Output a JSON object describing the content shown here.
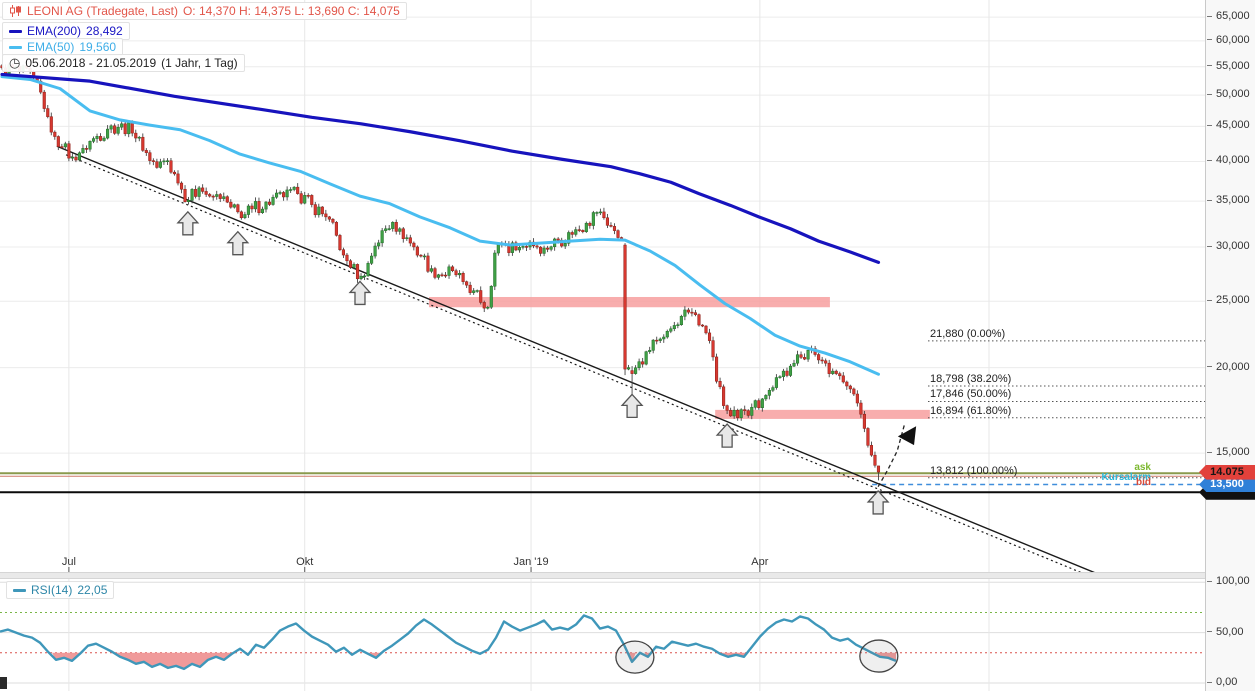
{
  "legend": {
    "instrument_name": "LEONI AG (Tradegate, Last)",
    "ohlc_text": "O: 14,370  H: 14,375  L: 13,690  C: 14,075",
    "ema200_label": "EMA(200)",
    "ema200_value": "28,492",
    "ema50_label": "EMA(50)",
    "ema50_value": "19,560",
    "range_text": "05.06.2018 - 21.05.2019",
    "range_detail": "(1 Jahr, 1 Tag)",
    "clock_glyph": "◷"
  },
  "rsi_legend": {
    "label": "RSI(14)",
    "value": "22,05"
  },
  "side_labels": {
    "ask": "ask",
    "alarm": "Kursalarm",
    "bid": "bid"
  },
  "price_axis_ticks": [
    {
      "label": "65,000",
      "price": 65.0
    },
    {
      "label": "60,000",
      "price": 60.0
    },
    {
      "label": "55,000",
      "price": 55.0
    },
    {
      "label": "50,000",
      "price": 50.0
    },
    {
      "label": "45,000",
      "price": 45.0
    },
    {
      "label": "40,000",
      "price": 40.0
    },
    {
      "label": "35,000",
      "price": 35.0
    },
    {
      "label": "30,000",
      "price": 30.0
    },
    {
      "label": "25,000",
      "price": 25.0
    },
    {
      "label": "20,000",
      "price": 20.0
    },
    {
      "label": "15,000",
      "price": 15.0
    }
  ],
  "rsi_axis_ticks": [
    {
      "label": "100,00",
      "value": 100
    },
    {
      "label": "50,00",
      "value": 50
    },
    {
      "label": "0,00",
      "value": 0
    }
  ],
  "price_tags": [
    {
      "text": "",
      "bg": "#111111",
      "fg": "#111111",
      "price": 13.15,
      "z": 24
    },
    {
      "text": "13,500",
      "bg": "#2f80d8",
      "fg": "#ffffff",
      "price": 13.5,
      "z": 26
    },
    {
      "text": "14.075",
      "bg": "#e2413b",
      "fg": "#151515",
      "price": 14.075,
      "z": 27
    }
  ],
  "time_axis": {
    "labels": [
      {
        "text": "Jul",
        "day": 19
      },
      {
        "text": "Okt",
        "day": 86
      },
      {
        "text": "Jan '19",
        "day": 150.3
      },
      {
        "text": "Apr",
        "day": 215.3
      }
    ],
    "extra_grid_days": [
      280.4
    ]
  },
  "chart_data": [
    {
      "type": "candlestick",
      "title": "LEONI AG (Tradegate, Last)",
      "timeframe": "1 Tag",
      "date_range": "05.06.2018 - 21.05.2019",
      "y_axis": {
        "scale": "log",
        "unit": "EUR",
        "ticks": [
          65,
          60,
          55,
          50,
          45,
          40,
          35,
          30,
          25,
          20,
          15
        ]
      },
      "last_ohlc": {
        "open": 14.37,
        "high": 14.375,
        "low": 13.69,
        "close": 14.075
      },
      "close_anchors": [
        [
          0,
          54.8
        ],
        [
          5,
          54.2
        ],
        [
          9,
          53.0
        ],
        [
          11,
          50.5
        ],
        [
          13,
          46.5
        ],
        [
          15,
          43.5
        ],
        [
          17,
          42.0
        ],
        [
          20,
          40.6
        ],
        [
          23,
          41.8
        ],
        [
          26,
          43.2
        ],
        [
          30,
          44.6
        ],
        [
          34,
          45.4
        ],
        [
          37,
          44.0
        ],
        [
          39,
          43.4
        ],
        [
          41,
          41.2
        ],
        [
          44,
          39.2
        ],
        [
          47,
          40.1
        ],
        [
          50,
          37.2
        ],
        [
          53,
          35.1
        ],
        [
          56,
          36.6
        ],
        [
          59,
          35.6
        ],
        [
          62,
          35.3
        ],
        [
          65,
          34.3
        ],
        [
          68,
          33.1
        ],
        [
          71,
          34.1
        ],
        [
          75,
          34.9
        ],
        [
          80,
          35.5
        ],
        [
          84,
          35.9
        ],
        [
          88,
          34.6
        ],
        [
          92,
          33.2
        ],
        [
          95,
          31.2
        ],
        [
          97,
          29.2
        ],
        [
          99,
          28.0
        ],
        [
          102,
          27.2
        ],
        [
          104,
          28.4
        ],
        [
          106,
          30.1
        ],
        [
          109,
          31.9
        ],
        [
          111,
          32.6
        ],
        [
          113,
          31.9
        ],
        [
          116,
          30.4
        ],
        [
          119,
          29.1
        ],
        [
          122,
          27.9
        ],
        [
          125,
          27.3
        ],
        [
          128,
          27.7
        ],
        [
          131,
          26.7
        ],
        [
          134,
          25.9
        ],
        [
          136,
          24.9
        ],
        [
          138,
          24.5
        ],
        [
          140,
          29.4
        ],
        [
          142,
          30.3
        ],
        [
          146,
          29.7
        ],
        [
          150,
          30.5
        ],
        [
          154,
          29.9
        ],
        [
          158,
          30.7
        ],
        [
          162,
          31.3
        ],
        [
          166,
          32.5
        ],
        [
          169,
          33.7
        ],
        [
          171,
          33.1
        ],
        [
          174,
          31.7
        ],
        [
          176,
          30.7
        ],
        [
          177,
          19.9
        ],
        [
          178,
          20.0
        ],
        [
          179,
          19.6
        ],
        [
          181,
          20.4
        ],
        [
          183,
          21.1
        ],
        [
          186,
          21.9
        ],
        [
          189,
          22.6
        ],
        [
          192,
          23.1
        ],
        [
          195,
          24.1
        ],
        [
          197,
          23.9
        ],
        [
          199,
          23.0
        ],
        [
          201,
          21.9
        ],
        [
          203,
          19.1
        ],
        [
          205,
          17.6
        ],
        [
          207,
          17.0
        ],
        [
          209,
          16.9
        ],
        [
          211,
          17.3
        ],
        [
          213,
          17.5
        ],
        [
          216,
          18.0
        ],
        [
          219,
          18.7
        ],
        [
          221,
          19.4
        ],
        [
          224,
          20.1
        ],
        [
          227,
          20.7
        ],
        [
          229,
          21.2
        ],
        [
          231,
          20.9
        ],
        [
          234,
          20.3
        ],
        [
          237,
          19.6
        ],
        [
          240,
          18.8
        ],
        [
          242,
          18.3
        ],
        [
          244,
          17.1
        ],
        [
          245,
          16.3
        ],
        [
          246,
          15.4
        ],
        [
          247,
          14.9
        ],
        [
          248,
          14.4
        ],
        [
          249,
          14.075
        ]
      ],
      "special_candles": {
        "177": {
          "o": 30.2,
          "h": 30.4,
          "l": 19.5,
          "c": 19.9
        },
        "179": {
          "o": 19.8,
          "h": 20.1,
          "l": 17.95,
          "c": 19.6
        },
        "249": {
          "o": 14.37,
          "h": 14.375,
          "l": 13.69,
          "c": 14.075
        }
      },
      "ema200": {
        "period": 200,
        "last": 28.492,
        "points": [
          [
            0,
            53.6
          ],
          [
            25,
            52.4
          ],
          [
            49,
            49.8
          ],
          [
            73,
            47.7
          ],
          [
            88,
            46.4
          ],
          [
            102,
            45.4
          ],
          [
            116,
            44.2
          ],
          [
            130,
            42.9
          ],
          [
            145,
            41.4
          ],
          [
            159,
            40.3
          ],
          [
            173,
            39.3
          ],
          [
            181,
            38.4
          ],
          [
            190,
            37.3
          ],
          [
            198,
            35.9
          ],
          [
            207,
            34.5
          ],
          [
            215,
            33.2
          ],
          [
            224,
            31.9
          ],
          [
            232,
            30.6
          ],
          [
            241,
            29.5
          ],
          [
            249,
            28.49
          ]
        ]
      },
      "ema50": {
        "period": 50,
        "last": 19.56,
        "points": [
          [
            0,
            53.2
          ],
          [
            8,
            52.7
          ],
          [
            16.5,
            51.1
          ],
          [
            25,
            47.4
          ],
          [
            33.5,
            46.0
          ],
          [
            42,
            45.2
          ],
          [
            50.6,
            44.5
          ],
          [
            59,
            42.9
          ],
          [
            67.6,
            41.0
          ],
          [
            76,
            39.8
          ],
          [
            84.7,
            38.7
          ],
          [
            93.2,
            37.1
          ],
          [
            101.7,
            35.6
          ],
          [
            110.2,
            34.7
          ],
          [
            118.7,
            33.2
          ],
          [
            127.3,
            32.0
          ],
          [
            135.8,
            30.6
          ],
          [
            144.3,
            30.2
          ],
          [
            152.8,
            30.4
          ],
          [
            161.4,
            30.6
          ],
          [
            169.9,
            30.8
          ],
          [
            177,
            30.7
          ],
          [
            184.1,
            29.6
          ],
          [
            191.2,
            28.2
          ],
          [
            198.3,
            26.4
          ],
          [
            205.4,
            24.8
          ],
          [
            212.5,
            23.6
          ],
          [
            219.6,
            22.3
          ],
          [
            226.7,
            21.5
          ],
          [
            233.8,
            21.0
          ],
          [
            240.9,
            20.4
          ],
          [
            249,
            19.56
          ]
        ]
      },
      "trendlines": [
        {
          "style": "solid",
          "d1": 15.6,
          "p1": 42.1,
          "d2": 312,
          "p2": 9.96
        },
        {
          "style": "dotted",
          "d1": 18.2,
          "p1": 40.9,
          "d2": 314.5,
          "p2": 9.66
        }
      ],
      "zones": [
        {
          "from_day": 121.3,
          "to_day": 235.2,
          "top": 25.36,
          "bottom": 24.5
        },
        {
          "from_day": 202.6,
          "to_day": 263.6,
          "top": 17.35,
          "bottom": 16.83
        }
      ],
      "fib_levels": [
        {
          "label": "21,880 (0.00%)",
          "price": 21.88
        },
        {
          "label": "18,798 (38.20%)",
          "price": 18.798
        },
        {
          "label": "17,846 (50.00%)",
          "price": 17.846
        },
        {
          "label": "16,894 (61.80%)",
          "price": 16.894
        },
        {
          "label": "13,812 (100.00%)",
          "price": 13.812
        }
      ],
      "h_lines": [
        {
          "name": "ask-line",
          "price": 14.02,
          "color": "#8a9a4d",
          "width": 2,
          "dash": ""
        },
        {
          "name": "bid-line",
          "price": 13.88,
          "color": "#cf7a6a",
          "width": 1,
          "dash": ""
        },
        {
          "name": "alarm-line",
          "price": 13.5,
          "color": "#3f8edb",
          "width": 1.5,
          "dash": "5,4",
          "from_day": 247.2
        },
        {
          "name": "support-line",
          "price": 13.15,
          "color": "#0a0a0a",
          "width": 2,
          "dash": ""
        }
      ],
      "arrow_markers": [
        {
          "day": 52.8,
          "price": 34.0
        },
        {
          "day": 67,
          "price": 31.8
        },
        {
          "day": 101.7,
          "price": 26.9
        },
        {
          "day": 179,
          "price": 18.4
        },
        {
          "day": 206,
          "price": 16.65
        },
        {
          "day": 248.9,
          "price": 13.3
        }
      ],
      "projection_arrow": {
        "points": [
          [
            248.9,
            13.4
          ],
          [
            251.7,
            14.2
          ],
          [
            254.3,
            15.1
          ],
          [
            256.5,
            16.6
          ]
        ],
        "head": [
          [
            259.7,
            16.42
          ],
          [
            254.5,
            15.87
          ],
          [
            259.1,
            15.41
          ]
        ]
      }
    },
    {
      "type": "line",
      "title": "RSI(14)",
      "last": 22.05,
      "overbought": 70,
      "oversold": 30,
      "ylim": [
        0,
        100
      ],
      "values": [
        51,
        53,
        50,
        47,
        45,
        40,
        31,
        23,
        25,
        22,
        29,
        37,
        39,
        35,
        31,
        26,
        23,
        19,
        21,
        16,
        19,
        15,
        17,
        14,
        19,
        16,
        23,
        26,
        23,
        29,
        34,
        28,
        38,
        35,
        43,
        52,
        56,
        59,
        52,
        46,
        42,
        38,
        31,
        35,
        28,
        33,
        29,
        25,
        32,
        37,
        43,
        49,
        57,
        63,
        58,
        52,
        46,
        40,
        36,
        32,
        29,
        33,
        45,
        61,
        56,
        52,
        55,
        58,
        62,
        53,
        55,
        53,
        58,
        67,
        64,
        54,
        56,
        52,
        38,
        21,
        30,
        26,
        36,
        34,
        41,
        39,
        37,
        39,
        36,
        34,
        29,
        26,
        28,
        26,
        36,
        46,
        54,
        60,
        63,
        61,
        66,
        64,
        58,
        53,
        45,
        42,
        44,
        38,
        34,
        30,
        26,
        25,
        22
      ],
      "ellipse_annotations": [
        {
          "x_day": 179.8,
          "value": 25.7
        },
        {
          "x_day": 249.1,
          "value": 26.7
        }
      ]
    }
  ],
  "colors": {
    "candle_up": "#3fa045",
    "candle_up_border": "#1e6b26",
    "candle_down": "#d63830",
    "candle_down_border": "#8f1d15",
    "ema200": "#1713bd",
    "ema50": "#49bdf0",
    "zone": "#f79f9f",
    "rsi_line": "#3f97ba",
    "rsi_fill": "#ee8f8f",
    "overbought_line": "#7ab648",
    "oversold_line": "#d9534f",
    "grid": "#ececec",
    "trendline": "#1a1a1a",
    "arrow_fill": "#e8e8e8",
    "arrow_stroke": "#555555"
  }
}
